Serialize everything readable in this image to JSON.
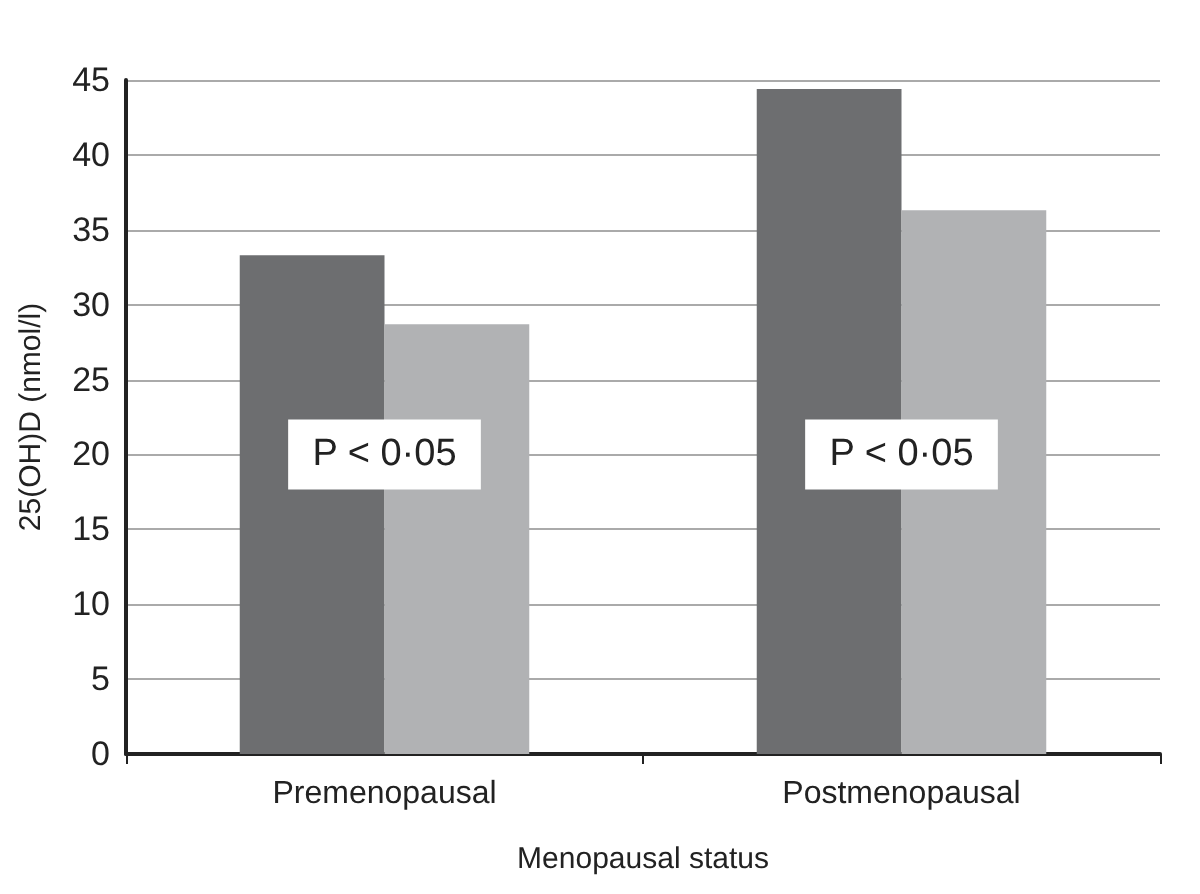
{
  "chart_data": {
    "type": "bar",
    "xlabel": "Menopausal status",
    "ylabel": "25(OH)D (nmol/l)",
    "categories": [
      "Premenopausal",
      "Postmenopausal"
    ],
    "series": [
      {
        "color": "#6d6e70",
        "values": [
          33.3,
          44.4
        ]
      },
      {
        "color": "#b1b2b4",
        "values": [
          28.7,
          36.3
        ]
      }
    ],
    "ylim": [
      0,
      45
    ],
    "yticks": [
      0,
      5,
      10,
      15,
      20,
      25,
      30,
      35,
      40,
      45
    ],
    "grid": "y",
    "annotations": [
      {
        "text": "P < 0·05",
        "x": "Premenopausal",
        "y": 20
      },
      {
        "text": "P < 0·05",
        "x": "Postmenopausal",
        "y": 20
      }
    ]
  }
}
